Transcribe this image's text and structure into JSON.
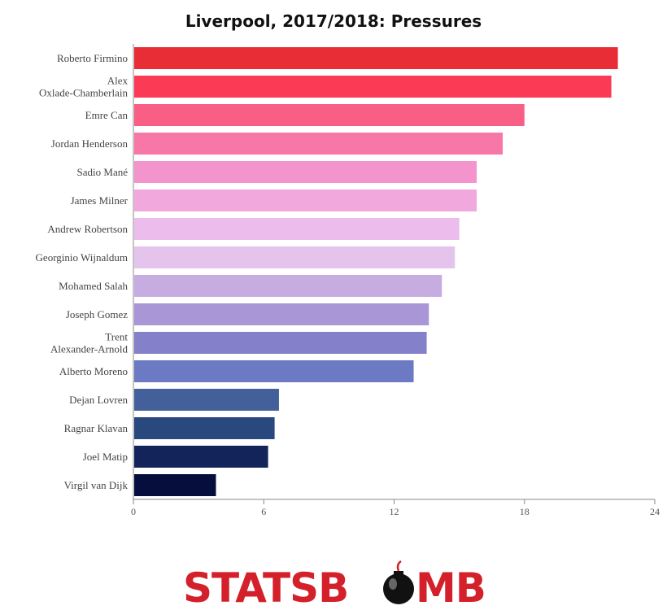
{
  "chart_data": {
    "type": "bar",
    "orientation": "horizontal",
    "title": "Liverpool, 2017/2018: Pressures",
    "xlim": [
      0,
      24
    ],
    "xticks": [
      0,
      6,
      12,
      18,
      24
    ],
    "grid": false,
    "categories": [
      [
        "Roberto Firmino"
      ],
      [
        "Alex",
        "Oxlade-Chamberlain"
      ],
      [
        "Emre Can"
      ],
      [
        "Jordan Henderson"
      ],
      [
        "Sadio Mané"
      ],
      [
        "James Milner"
      ],
      [
        "Andrew Robertson"
      ],
      [
        "Georginio Wijnaldum"
      ],
      [
        "Mohamed Salah"
      ],
      [
        "Joseph Gomez"
      ],
      [
        "Trent",
        "Alexander-Arnold"
      ],
      [
        "Alberto Moreno"
      ],
      [
        "Dejan Lovren"
      ],
      [
        "Ragnar Klavan"
      ],
      [
        "Joel Matip"
      ],
      [
        "Virgil van Dijk"
      ]
    ],
    "values": [
      22.3,
      22.0,
      18.0,
      17.0,
      15.8,
      15.8,
      15.0,
      14.8,
      14.2,
      13.6,
      13.5,
      12.9,
      6.7,
      6.5,
      6.2,
      3.8
    ],
    "colors": [
      "#e82d36",
      "#fb3a55",
      "#f95e85",
      "#f778a6",
      "#f494cc",
      "#f0a8dd",
      "#ecbcec",
      "#e4c4ec",
      "#c7ace2",
      "#a996d6",
      "#8580ca",
      "#6c79c3",
      "#44609b",
      "#28487e",
      "#13245a",
      "#050e3c"
    ]
  },
  "logo": {
    "text_left": "STATSB",
    "text_right": "MB"
  }
}
